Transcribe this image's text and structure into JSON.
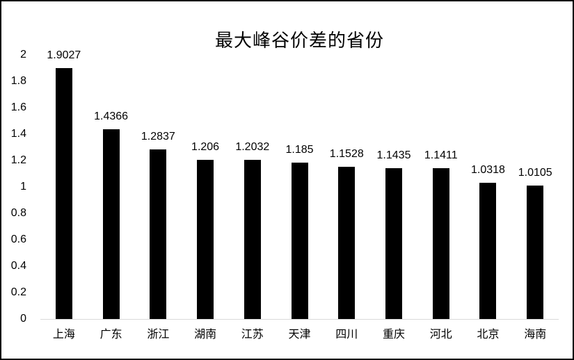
{
  "chart_data": {
    "type": "bar",
    "title": "最大峰谷价差的省份",
    "categories": [
      "上海",
      "广东",
      "浙江",
      "湖南",
      "江苏",
      "天津",
      "四川",
      "重庆",
      "河北",
      "北京",
      "海南"
    ],
    "values": [
      1.9027,
      1.4366,
      1.2837,
      1.206,
      1.2032,
      1.185,
      1.1528,
      1.1435,
      1.1411,
      1.0318,
      1.0105
    ],
    "value_labels": [
      "1.9027",
      "1.4366",
      "1.2837",
      "1.206",
      "1.2032",
      "1.185",
      "1.1528",
      "1.1435",
      "1.1411",
      "1.0318",
      "1.0105"
    ],
    "xlabel": "",
    "ylabel": "",
    "ylim": [
      0,
      2
    ],
    "yticks": [
      0,
      0.2,
      0.4,
      0.6,
      0.8,
      1,
      1.2,
      1.4,
      1.6,
      1.8,
      2
    ],
    "ytick_labels": [
      "0",
      "0.2",
      "0.4",
      "0.6",
      "0.8",
      "1",
      "1.2",
      "1.4",
      "1.6",
      "1.8",
      "2"
    ],
    "grid": "off",
    "legend": "none",
    "bar_color": "#000000",
    "axis_line_color": "#d9d9d9",
    "text_color": "#000000",
    "background_color": "#ffffff"
  }
}
